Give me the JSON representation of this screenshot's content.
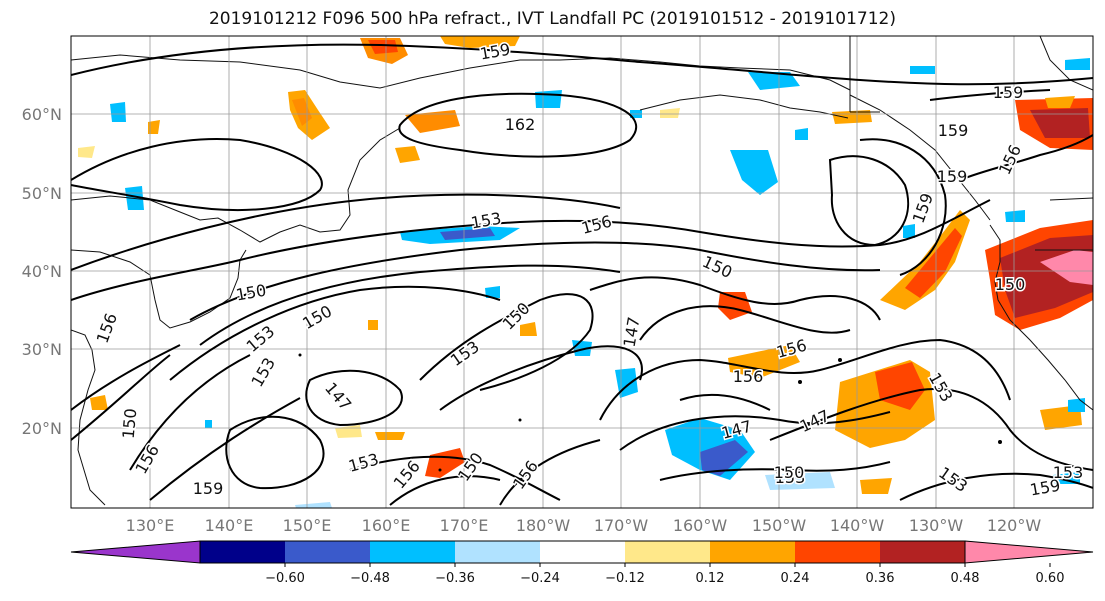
{
  "title": "2019101212 F096 500 hPa refract., IVT Landfall PC (2019101512 - 2019101712)",
  "lat_labels": [
    "60°N",
    "50°N",
    "40°N",
    "30°N",
    "20°N"
  ],
  "lon_labels": [
    "130°E",
    "140°E",
    "150°E",
    "160°E",
    "170°E",
    "180°W",
    "170°W",
    "160°W",
    "150°W",
    "140°W",
    "130°W",
    "120°W"
  ],
  "contour_labels": [
    "159",
    "162",
    "159",
    "159",
    "156",
    "159",
    "153",
    "156",
    "159",
    "150",
    "156",
    "150",
    "150",
    "153",
    "150",
    "153",
    "150",
    "147",
    "153",
    "156",
    "147",
    "153",
    "150",
    "156",
    "147",
    "153",
    "156",
    "150",
    "159",
    "147",
    "153",
    "156",
    "156",
    "150",
    "153",
    "159",
    "153"
  ],
  "colorbar": {
    "ticks": [
      "−0.60",
      "−0.48",
      "−0.36",
      "−0.24",
      "−0.12",
      "0.12",
      "0.24",
      "0.36",
      "0.48",
      "0.60"
    ],
    "colors": [
      "#9a35cc",
      "#00008a",
      "#3a5acb",
      "#00bfff",
      "#b0e2ff",
      "#ffffff",
      "#ffe88a",
      "#ffa500",
      "#ff4500",
      "#b22222",
      "#ff88aa"
    ]
  }
}
